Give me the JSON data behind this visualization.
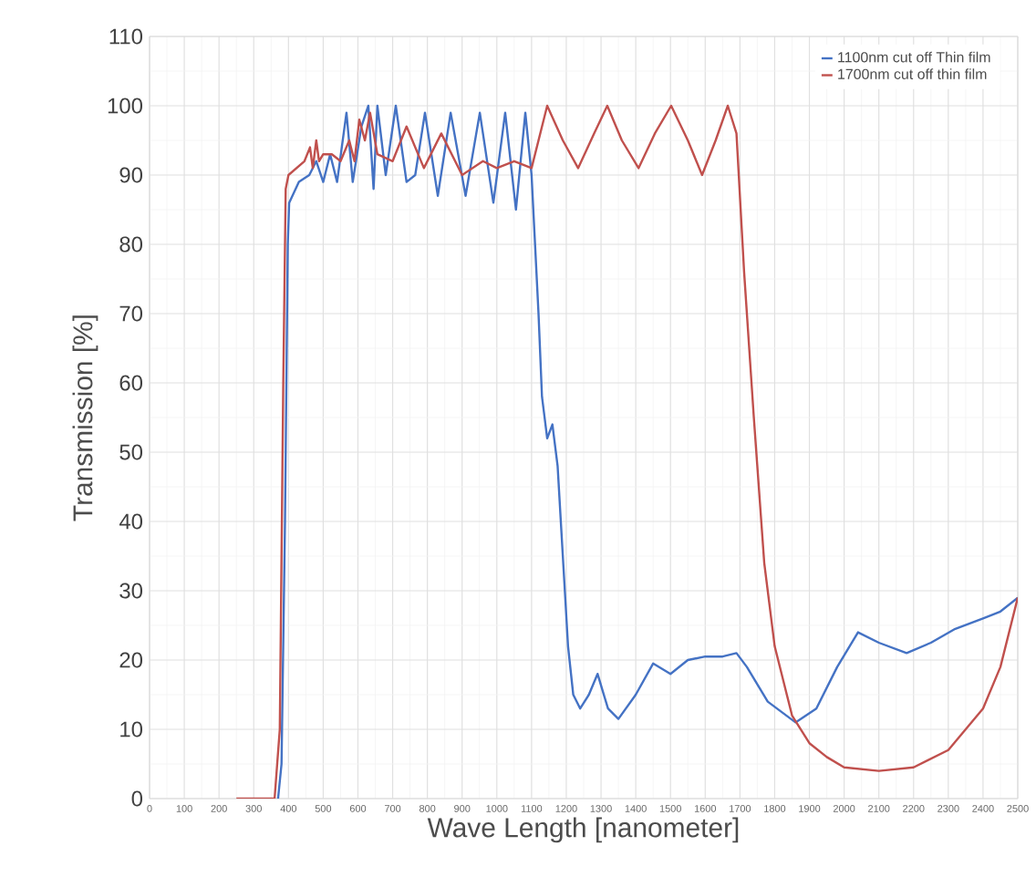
{
  "chart_data": {
    "type": "line",
    "xlabel": "Wave Length [nanometer]",
    "ylabel": "Transmission [%]",
    "xlim": [
      0,
      2500
    ],
    "ylim": [
      0,
      110
    ],
    "xticks": [
      0,
      100,
      200,
      300,
      400,
      500,
      600,
      700,
      800,
      900,
      1000,
      1100,
      1200,
      1300,
      1400,
      1500,
      1600,
      1700,
      1800,
      1900,
      2000,
      2100,
      2200,
      2300,
      2400,
      2500
    ],
    "yticks": [
      0,
      10,
      20,
      30,
      40,
      50,
      60,
      70,
      80,
      90,
      100,
      110
    ],
    "grid": true,
    "legend": "top right",
    "marker": "none",
    "line_style": "solid",
    "series": [
      {
        "name": "1100nm cut off Thin film",
        "color": "#4472c4",
        "x": [
          370,
          380,
          390,
          398,
          402,
          430,
          460,
          480,
          500,
          520,
          540,
          567,
          585,
          610,
          630,
          645,
          656,
          680,
          709,
          740,
          765,
          793,
          830,
          867,
          910,
          951,
          990,
          1024,
          1055,
          1082,
          1100,
          1110,
          1120,
          1130,
          1145,
          1160,
          1175,
          1190,
          1205,
          1220,
          1240,
          1265,
          1290,
          1320,
          1350,
          1400,
          1450,
          1500,
          1550,
          1600,
          1650,
          1690,
          1720,
          1780,
          1860,
          1920,
          1980,
          2040,
          2100,
          2180,
          2250,
          2320,
          2400,
          2450,
          2500
        ],
        "values": [
          0,
          5,
          40,
          80,
          86,
          89,
          90,
          92,
          89,
          93,
          89,
          99,
          89,
          97,
          100,
          88,
          100,
          90,
          100,
          89,
          90,
          99,
          87,
          99,
          87,
          99,
          86,
          99,
          85,
          99,
          90,
          80,
          70,
          58,
          52,
          54,
          48,
          35,
          22,
          15,
          13,
          15,
          18,
          13,
          11.5,
          15,
          19.5,
          18,
          20,
          20.5,
          20.5,
          21,
          19,
          14,
          11,
          13,
          19,
          24,
          22.5,
          21,
          22.5,
          24.5,
          26,
          27,
          29
        ]
      },
      {
        "name": "1700nm cut off thin film",
        "color": "#c0504d",
        "x": [
          250,
          360,
          375,
          385,
          392,
          400,
          446,
          462,
          470,
          480,
          488,
          500,
          525,
          550,
          575,
          590,
          604,
          620,
          635,
          656,
          700,
          740,
          790,
          840,
          900,
          960,
          1000,
          1050,
          1100,
          1145,
          1190,
          1234,
          1280,
          1318,
          1360,
          1408,
          1455,
          1502,
          1550,
          1591,
          1630,
          1665,
          1690,
          1712,
          1740,
          1770,
          1800,
          1850,
          1900,
          1950,
          2000,
          2100,
          2200,
          2300,
          2400,
          2450,
          2500
        ],
        "values": [
          0,
          0,
          10,
          60,
          88,
          90,
          92,
          94,
          91,
          95,
          92,
          93,
          93,
          92,
          95,
          92,
          98,
          95,
          99,
          93,
          92,
          97,
          91,
          96,
          90,
          92,
          91,
          92,
          91,
          100,
          95,
          91,
          96,
          100,
          95,
          91,
          96,
          100,
          95,
          90,
          95,
          100,
          96,
          76,
          55,
          34,
          22,
          12,
          8,
          6,
          4.5,
          4,
          4.5,
          7,
          13,
          19,
          29
        ]
      }
    ]
  }
}
